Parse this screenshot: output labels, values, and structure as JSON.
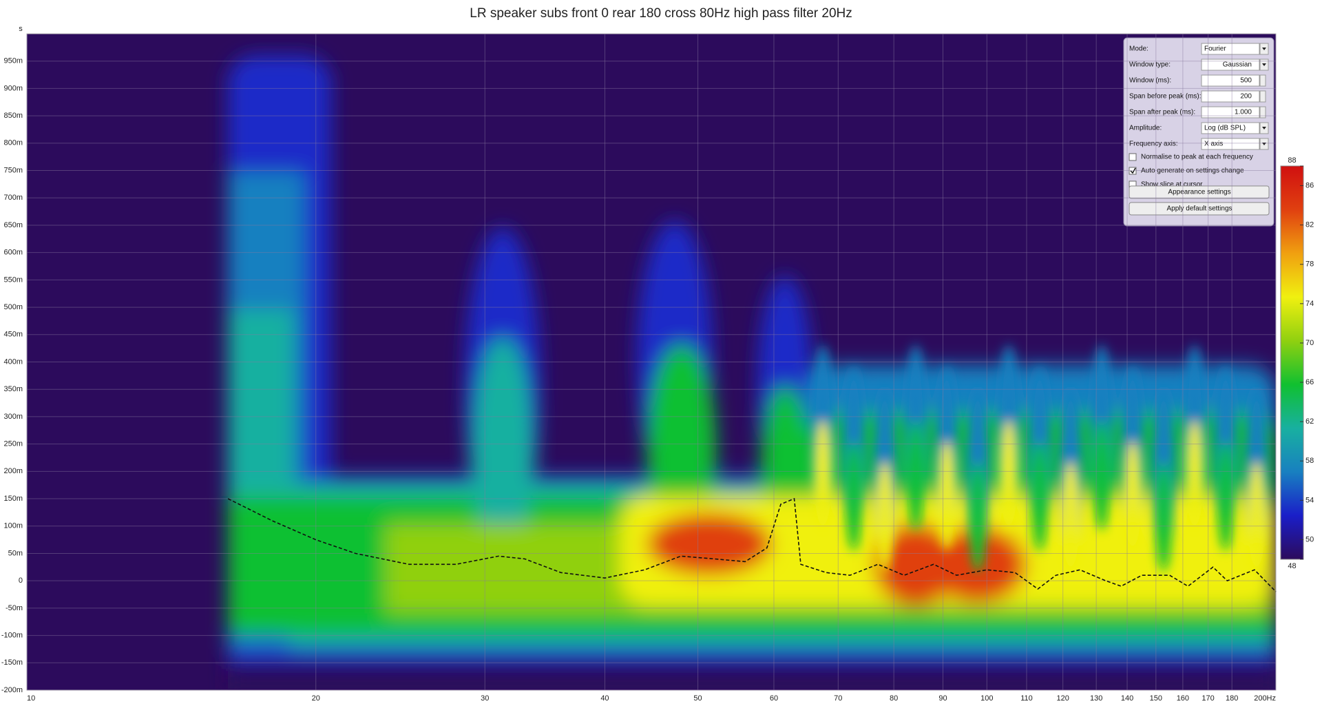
{
  "chart_data": {
    "type": "spectrogram",
    "title": "LR speaker subs front 0 rear 180 cross 80Hz high pass filter 20Hz",
    "y_label": "s",
    "x_scale": "log",
    "xlim": [
      10,
      200
    ],
    "xticks": [
      10,
      20,
      30,
      40,
      50,
      60,
      70,
      80,
      90,
      100,
      110,
      120,
      130,
      140,
      150,
      160,
      170,
      180,
      {
        "value": 200,
        "label": "200Hz"
      }
    ],
    "ylim": [
      -0.2,
      1.0
    ],
    "yticks": [
      {
        "value": -0.2,
        "label": "-200m"
      },
      {
        "value": -0.15,
        "label": "-150m"
      },
      {
        "value": -0.1,
        "label": "-100m"
      },
      {
        "value": -0.05,
        "label": "-50m"
      },
      0,
      {
        "value": 0.05,
        "label": "50m"
      },
      {
        "value": 0.1,
        "label": "100m"
      },
      {
        "value": 0.15,
        "label": "150m"
      },
      {
        "value": 0.2,
        "label": "200m"
      },
      {
        "value": 0.25,
        "label": "250m"
      },
      {
        "value": 0.3,
        "label": "300m"
      },
      {
        "value": 0.35,
        "label": "350m"
      },
      {
        "value": 0.4,
        "label": "400m"
      },
      {
        "value": 0.45,
        "label": "450m"
      },
      {
        "value": 0.5,
        "label": "500m"
      },
      {
        "value": 0.55,
        "label": "550m"
      },
      {
        "value": 0.6,
        "label": "600m"
      },
      {
        "value": 0.65,
        "label": "650m"
      },
      {
        "value": 0.7,
        "label": "700m"
      },
      {
        "value": 0.75,
        "label": "750m"
      },
      {
        "value": 0.8,
        "label": "800m"
      },
      {
        "value": 0.85,
        "label": "850m"
      },
      {
        "value": 0.9,
        "label": "900m"
      },
      {
        "value": 0.95,
        "label": "950m"
      }
    ],
    "grid": true,
    "background": "#2c0b5c",
    "x": [
      16.2,
      18,
      20,
      22,
      25,
      28,
      31,
      33,
      36,
      40,
      44,
      48,
      52,
      56,
      59,
      61,
      63,
      64,
      68,
      72,
      77,
      82,
      88,
      93,
      100,
      107,
      113,
      118,
      125,
      133,
      138,
      145,
      155,
      162,
      172,
      178,
      190,
      200
    ],
    "series": [
      {
        "color": "#111111",
        "dashed": true,
        "values": [
          0.15,
          0.11,
          0.075,
          0.05,
          0.03,
          0.03,
          0.045,
          0.04,
          0.015,
          0.005,
          0.02,
          0.045,
          0.04,
          0.035,
          0.06,
          0.14,
          0.15,
          0.03,
          0.015,
          0.01,
          0.03,
          0.01,
          0.03,
          0.01,
          0.02,
          0.015,
          -0.015,
          0.01,
          0.02,
          0.0,
          -0.01,
          0.01,
          0.01,
          -0.01,
          0.025,
          0.0,
          0.02,
          -0.02
        ]
      }
    ],
    "colorbar": {
      "lim": [
        48,
        88
      ],
      "ticks": [
        48,
        50,
        54,
        58,
        62,
        66,
        70,
        74,
        78,
        82,
        86,
        88
      ],
      "colors": [
        "#2c0b5c",
        "#1a1ec8",
        "#1880c0",
        "#18b0a0",
        "#10c030",
        "#90d010",
        "#f0f010",
        "#f0a010",
        "#e04010",
        "#d01010"
      ]
    }
  },
  "panel": {
    "fields": [
      {
        "label": "Mode:",
        "value": "Fourier",
        "control": "dropdown"
      },
      {
        "label": "Window type:",
        "value": "Gaussian",
        "control": "dropdown"
      },
      {
        "label": "Window (ms):",
        "value": "500",
        "control": "spin"
      },
      {
        "label": "Span before peak (ms):",
        "value": "200",
        "control": "spin"
      },
      {
        "label": "Span after peak (ms):",
        "value": "1.000",
        "control": "spin"
      },
      {
        "label": "Amplitude:",
        "value": "Log (dB SPL)",
        "control": "dropdown"
      },
      {
        "label": "Frequency axis:",
        "value": "X axis",
        "control": "dropdown"
      }
    ],
    "checkboxes": [
      {
        "label": "Normalise to peak at each frequency",
        "checked": false
      },
      {
        "label": "Auto generate on settings change",
        "checked": true
      },
      {
        "label": "Show slice at cursor",
        "checked": false
      }
    ],
    "buttons": [
      "Appearance settings",
      "Apply default settings"
    ]
  }
}
